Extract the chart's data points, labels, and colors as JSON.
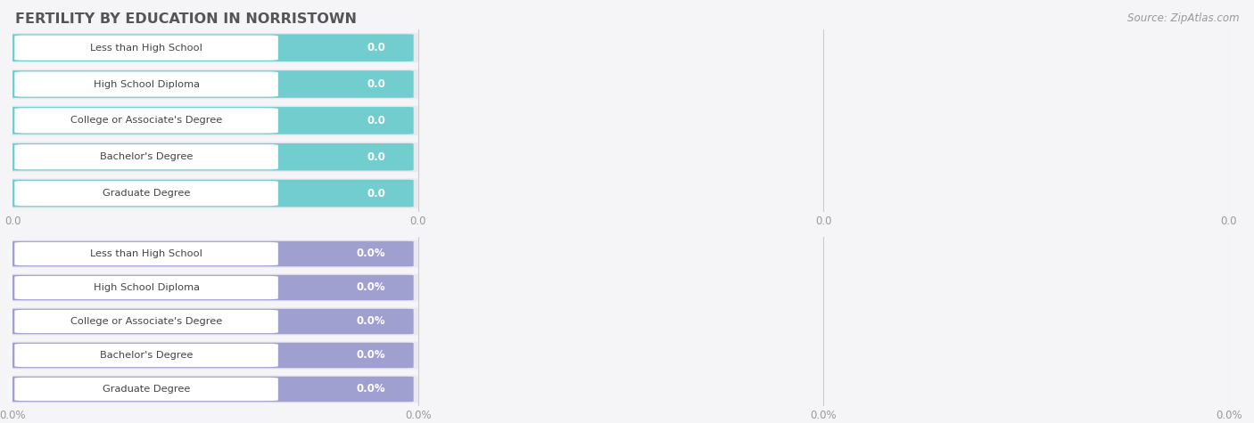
{
  "title": "FERTILITY BY EDUCATION IN NORRISTOWN",
  "source": "Source: ZipAtlas.com",
  "categories": [
    "Less than High School",
    "High School Diploma",
    "College or Associate's Degree",
    "Bachelor's Degree",
    "Graduate Degree"
  ],
  "top_values": [
    0.0,
    0.0,
    0.0,
    0.0,
    0.0
  ],
  "bottom_values": [
    0.0,
    0.0,
    0.0,
    0.0,
    0.0
  ],
  "top_bar_color": "#72cece",
  "top_value_color": "#ffffff",
  "top_label_text_color": "#444444",
  "bottom_bar_color": "#a0a0d0",
  "bottom_value_color": "#ffffff",
  "bottom_label_text_color": "#444444",
  "white_pill_color": "#ffffff",
  "bar_row_bg": "#e8e8ee",
  "title_color": "#555555",
  "source_color": "#999999",
  "fig_bg": "#f5f5f8",
  "grid_color": "#cccccc",
  "tick_color": "#999999"
}
